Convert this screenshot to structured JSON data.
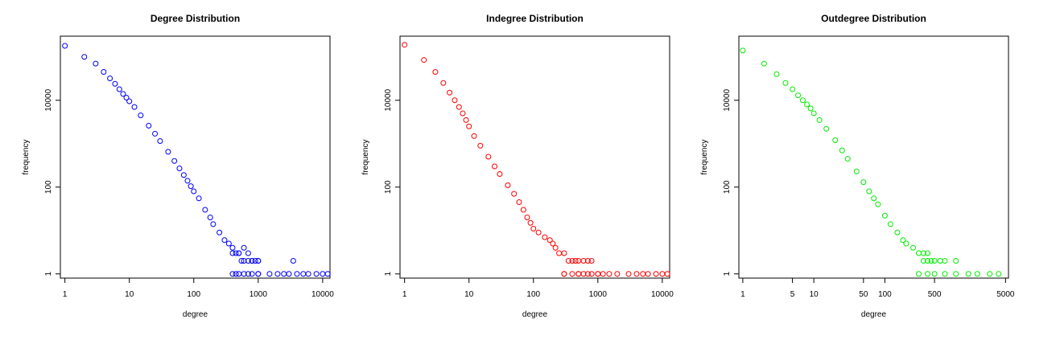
{
  "colors": {
    "series": [
      "#0000ff",
      "#ff0000",
      "#00ee00"
    ],
    "axes": "#000000",
    "background": "#ffffff"
  },
  "chart_data": [
    {
      "type": "scatter",
      "title": "Degree Distribution",
      "xlabel": "degree",
      "ylabel": "frequency",
      "xscale": "log",
      "yscale": "log",
      "xlim": [
        0.85,
        13000
      ],
      "ylim": [
        0.8,
        300000
      ],
      "xticks": [
        1,
        10,
        100,
        1000,
        10000
      ],
      "xtick_labels": [
        "1",
        "10",
        "100",
        "1000",
        "10000"
      ],
      "yticks": [
        1,
        100,
        10000
      ],
      "ytick_labels": [
        "1",
        "100",
        "10000"
      ],
      "marker": "open-circle",
      "color": "#0000ff",
      "x": [
        1,
        2,
        3,
        4,
        5,
        6,
        7,
        8,
        9,
        10,
        12,
        15,
        20,
        25,
        30,
        40,
        50,
        60,
        70,
        80,
        90,
        100,
        120,
        150,
        180,
        200,
        250,
        300,
        350,
        400,
        450,
        500,
        550,
        600,
        700,
        800,
        900,
        1000,
        400,
        500,
        600,
        700,
        800,
        1000,
        450,
        600,
        800,
        1000,
        400,
        500,
        700,
        1000,
        1500,
        2000,
        2500,
        3000,
        4000,
        5000,
        6000,
        8000,
        10000,
        12000,
        3500
      ],
      "y": [
        180000,
        100000,
        70000,
        45000,
        32000,
        24000,
        18000,
        14000,
        11500,
        9500,
        7000,
        4500,
        2600,
        1700,
        1150,
        650,
        400,
        270,
        190,
        140,
        105,
        80,
        55,
        30,
        20,
        14,
        9,
        6,
        5,
        4,
        3,
        3,
        2,
        2,
        2,
        2,
        2,
        2,
        3,
        3,
        4,
        3,
        2,
        2,
        1,
        1,
        1,
        1,
        1,
        1,
        1,
        1,
        1,
        1,
        1,
        1,
        1,
        1,
        1,
        1,
        1,
        1,
        2
      ]
    },
    {
      "type": "scatter",
      "title": "Indegree Distribution",
      "xlabel": "degree",
      "ylabel": "frequency",
      "xscale": "log",
      "yscale": "log",
      "xlim": [
        0.85,
        13000
      ],
      "ylim": [
        0.8,
        300000
      ],
      "xticks": [
        1,
        10,
        100,
        1000,
        10000
      ],
      "xtick_labels": [
        "1",
        "10",
        "100",
        "1000",
        "10000"
      ],
      "yticks": [
        1,
        100,
        10000
      ],
      "ytick_labels": [
        "1",
        "100",
        "10000"
      ],
      "marker": "open-circle",
      "color": "#ff0000",
      "x": [
        1,
        2,
        3,
        4,
        5,
        6,
        7,
        8,
        9,
        10,
        12,
        15,
        20,
        25,
        30,
        40,
        50,
        60,
        70,
        80,
        90,
        100,
        120,
        150,
        180,
        200,
        220,
        250,
        300,
        350,
        400,
        450,
        500,
        600,
        700,
        800,
        300,
        400,
        500,
        600,
        800,
        1000,
        1200,
        300,
        500,
        700,
        1000,
        1500,
        2000,
        3000,
        4000,
        5000,
        6000,
        8000,
        10000,
        12000
      ],
      "y": [
        190000,
        85000,
        45000,
        25000,
        15000,
        10000,
        7000,
        5000,
        3500,
        2500,
        1500,
        900,
        500,
        300,
        200,
        110,
        70,
        45,
        30,
        20,
        15,
        11,
        9,
        7,
        6,
        5,
        4,
        3,
        3,
        2,
        2,
        2,
        2,
        2,
        2,
        2,
        1,
        1,
        1,
        1,
        1,
        1,
        1,
        1,
        1,
        1,
        1,
        1,
        1,
        1,
        1,
        1,
        1,
        1,
        1,
        1
      ]
    },
    {
      "type": "scatter",
      "title": "Outdegree Distribution",
      "xlabel": "degree",
      "ylabel": "frequency",
      "xscale": "log",
      "yscale": "log",
      "xlim": [
        0.88,
        5500
      ],
      "ylim": [
        0.8,
        300000
      ],
      "xticks": [
        1,
        5,
        10,
        50,
        100,
        500,
        5000
      ],
      "xtick_labels": [
        "1",
        "5",
        "10",
        "50",
        "100",
        "500",
        "5000"
      ],
      "yticks": [
        1,
        100,
        10000
      ],
      "ytick_labels": [
        "1",
        "100",
        "10000"
      ],
      "marker": "open-circle",
      "color": "#00ee00",
      "x": [
        1,
        2,
        3,
        4,
        5,
        6,
        7,
        8,
        9,
        10,
        12,
        15,
        20,
        25,
        30,
        40,
        50,
        60,
        70,
        80,
        100,
        120,
        150,
        180,
        200,
        250,
        300,
        350,
        400,
        450,
        350,
        400,
        500,
        600,
        700,
        1000,
        300,
        400,
        500,
        700,
        1000,
        1500,
        2000,
        3000,
        4000
      ],
      "y": [
        140000,
        70000,
        40000,
        25000,
        18000,
        13000,
        10000,
        8000,
        6500,
        5000,
        3500,
        2200,
        1200,
        700,
        450,
        230,
        130,
        80,
        55,
        40,
        22,
        14,
        9,
        6,
        5,
        4,
        3,
        3,
        3,
        2,
        2,
        2,
        2,
        2,
        2,
        2,
        1,
        1,
        1,
        1,
        1,
        1,
        1,
        1,
        1
      ]
    }
  ]
}
